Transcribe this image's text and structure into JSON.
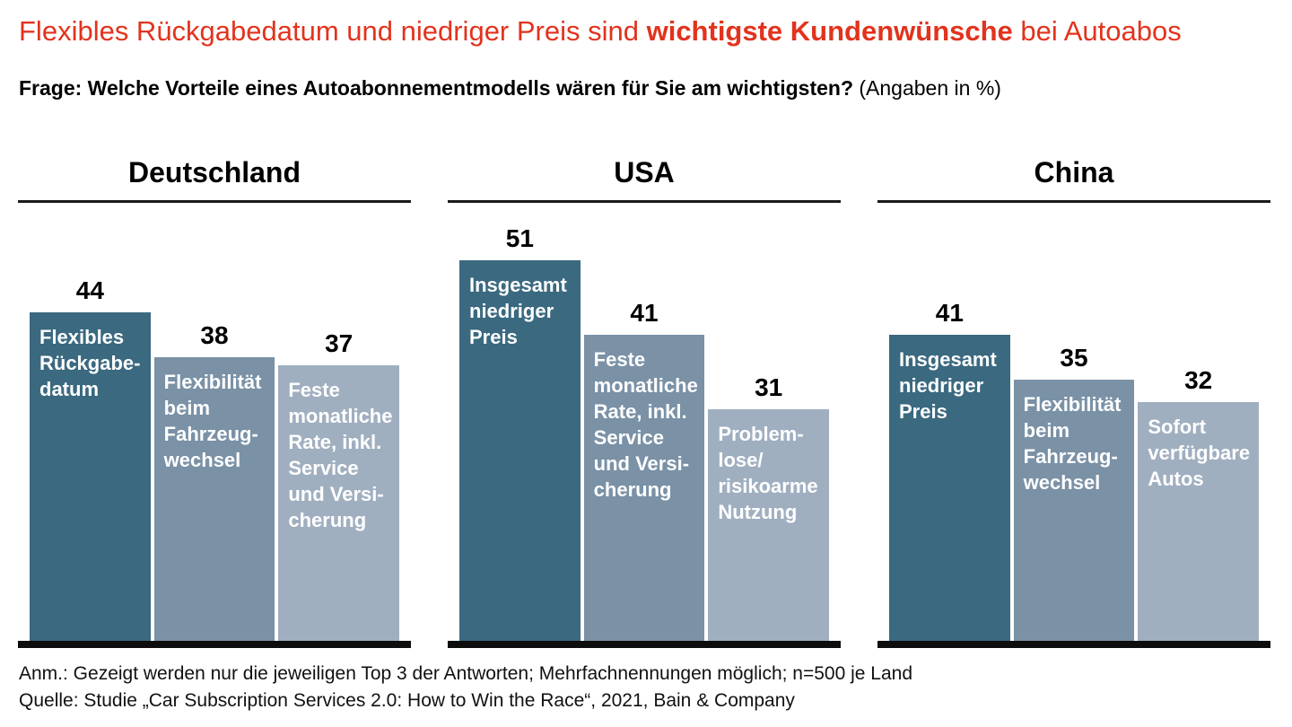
{
  "title": {
    "pre": "Flexibles Rückgabedatum und niedriger Preis sind ",
    "highlight": "wichtigste Kundenwünsche",
    "post": " bei Autoabos",
    "color": "#e2331d"
  },
  "subtitle": {
    "question": "Frage: Welche Vorteile eines Autoabonnementmodells wären für Sie am wichtigsten?",
    "unit_note": " (Angaben in %)"
  },
  "chart_data": {
    "type": "bar",
    "unit": "%",
    "ylim": [
      0,
      51
    ],
    "grid": false,
    "legend": "none",
    "palette": [
      "#3a6980",
      "#7a91a6",
      "#a0afc0"
    ],
    "baseline_color": "#0d0d0d",
    "groups": [
      {
        "label": "Deutschland",
        "bars": [
          {
            "value": 44,
            "label": "Flexibles\nRückgabe-\ndatum"
          },
          {
            "value": 38,
            "label": "Flexibilität\nbeim\nFahrzeug-\nwechsel"
          },
          {
            "value": 37,
            "label": "Feste\nmonatliche\nRate, inkl.\nService\nund Versi-\ncherung"
          }
        ]
      },
      {
        "label": "USA",
        "bars": [
          {
            "value": 51,
            "label": "Insgesamt\nniedriger\nPreis"
          },
          {
            "value": 41,
            "label": "Feste\nmonatliche\nRate, inkl.\nService\nund Versi-\ncherung"
          },
          {
            "value": 31,
            "label": "Problem-\nlose/\nrisikoarme\nNutzung"
          }
        ]
      },
      {
        "label": "China",
        "bars": [
          {
            "value": 41,
            "label": "Insgesamt\nniedriger\nPreis"
          },
          {
            "value": 35,
            "label": "Flexibilität\nbeim\nFahrzeug-\nwechsel"
          },
          {
            "value": 32,
            "label": "Sofort\nverfügbare\nAutos"
          }
        ]
      }
    ]
  },
  "footnotes": {
    "line1": "Anm.: Gezeigt werden nur die jeweiligen Top 3 der Antworten; Mehrfachnennungen möglich; n=500 je Land",
    "line2": "Quelle: Studie „Car Subscription Services 2.0: How to Win the Race“, 2021, Bain & Company"
  }
}
